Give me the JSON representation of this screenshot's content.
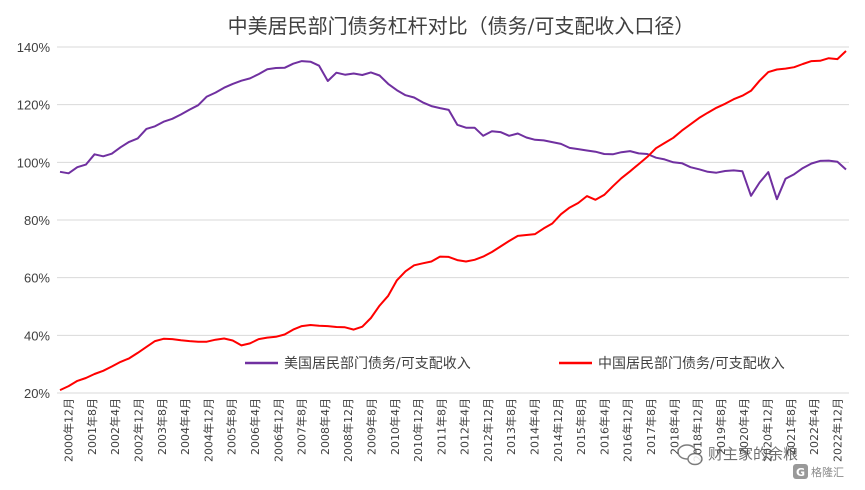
{
  "chart_data": {
    "type": "line",
    "title": "中美居民部门债务杠杆对比（债务/可支配收入口径）",
    "xlabel": "",
    "ylabel": "",
    "ylim": [
      0.2,
      1.4
    ],
    "yticks": [
      "20%",
      "40%",
      "60%",
      "80%",
      "100%",
      "120%",
      "140%"
    ],
    "ytick_values": [
      0.2,
      0.4,
      0.6,
      0.8,
      1.0,
      1.2,
      1.4
    ],
    "grid": "horizontal",
    "legend": "bottom-center",
    "x_tick_labels": [
      "2000年12月",
      "2001年8月",
      "2002年4月",
      "2002年12月",
      "2003年8月",
      "2004年4月",
      "2004年12月",
      "2005年8月",
      "2006年4月",
      "2006年12月",
      "2007年8月",
      "2008年4月",
      "2008年12月",
      "2009年8月",
      "2010年4月",
      "2010年12月",
      "2011年8月",
      "2012年4月",
      "2012年12月",
      "2013年8月",
      "2014年4月",
      "2014年12月",
      "2015年8月",
      "2016年4月",
      "2016年12月",
      "2017年8月",
      "2018年4月",
      "2018年12月",
      "2019年8月",
      "2020年4月",
      "2020年12月",
      "2021年8月",
      "2022年4月",
      "2022年12月"
    ],
    "series": [
      {
        "name": "美国居民部门债务/可支配收入",
        "color": "#7030a0",
        "values": [
          0.967,
          0.962,
          0.983,
          0.992,
          1.028,
          1.021,
          1.03,
          1.052,
          1.071,
          1.083,
          1.116,
          1.125,
          1.141,
          1.151,
          1.166,
          1.183,
          1.198,
          1.228,
          1.242,
          1.259,
          1.272,
          1.283,
          1.291,
          1.306,
          1.323,
          1.327,
          1.328,
          1.342,
          1.351,
          1.349,
          1.335,
          1.282,
          1.311,
          1.304,
          1.308,
          1.303,
          1.312,
          1.301,
          1.272,
          1.25,
          1.233,
          1.225,
          1.208,
          1.195,
          1.188,
          1.182,
          1.13,
          1.12,
          1.12,
          1.092,
          1.108,
          1.105,
          1.092,
          1.1,
          1.086,
          1.078,
          1.076,
          1.07,
          1.064,
          1.05,
          1.046,
          1.041,
          1.037,
          1.029,
          1.028,
          1.035,
          1.039,
          1.031,
          1.029,
          1.016,
          1.01,
          1.0,
          0.997,
          0.983,
          0.976,
          0.967,
          0.964,
          0.97,
          0.972,
          0.969,
          0.884,
          0.93,
          0.966,
          0.872,
          0.943,
          0.959,
          0.98,
          0.996,
          1.005,
          1.006,
          1.002,
          0.975
        ]
      },
      {
        "name": "中国居民部门债务/可支配收入",
        "color": "#ff0000",
        "values": [
          0.21,
          0.224,
          0.242,
          0.252,
          0.266,
          0.277,
          0.292,
          0.308,
          0.32,
          0.339,
          0.36,
          0.38,
          0.388,
          0.387,
          0.383,
          0.38,
          0.378,
          0.378,
          0.385,
          0.389,
          0.382,
          0.365,
          0.372,
          0.387,
          0.392,
          0.395,
          0.403,
          0.42,
          0.432,
          0.436,
          0.433,
          0.432,
          0.429,
          0.428,
          0.42,
          0.43,
          0.46,
          0.503,
          0.537,
          0.591,
          0.622,
          0.643,
          0.65,
          0.656,
          0.673,
          0.672,
          0.661,
          0.656,
          0.662,
          0.673,
          0.689,
          0.708,
          0.727,
          0.745,
          0.748,
          0.751,
          0.771,
          0.788,
          0.82,
          0.843,
          0.859,
          0.883,
          0.87,
          0.887,
          0.917,
          0.945,
          0.969,
          0.994,
          1.019,
          1.049,
          1.067,
          1.085,
          1.11,
          1.132,
          1.154,
          1.172,
          1.189,
          1.203,
          1.219,
          1.231,
          1.248,
          1.283,
          1.313,
          1.322,
          1.325,
          1.33,
          1.341,
          1.351,
          1.352,
          1.361,
          1.358,
          1.386
        ]
      }
    ]
  },
  "watermark": {
    "text": "财主家的余粮",
    "badge": "G",
    "secondary": "格隆汇"
  }
}
